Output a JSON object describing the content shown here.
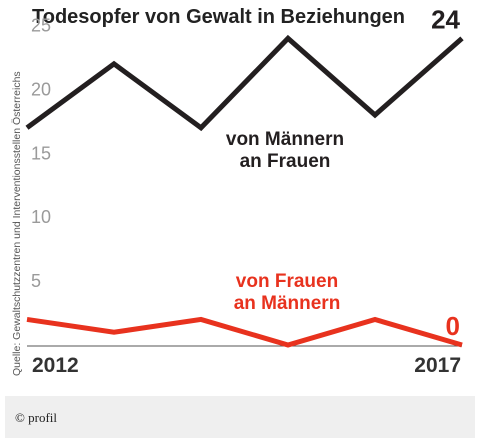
{
  "chart_data": {
    "type": "line",
    "title": "Todesopfer von Gewalt in Beziehungen",
    "source": "Quelle: Gewaltschutzzentren und Interventionsstellen Österreichs",
    "x": [
      2012,
      2013,
      2014,
      2015,
      2016,
      2017
    ],
    "x_tick_labels": [
      "2012",
      "2017"
    ],
    "y_ticks": [
      "5",
      "10",
      "15",
      "20",
      "25"
    ],
    "ylim": [
      0,
      27
    ],
    "grid": false,
    "series": [
      {
        "name": "von Männern an Frauen",
        "label_lines": [
          "von Männern",
          "an Frauen"
        ],
        "values": [
          17,
          22,
          17,
          24,
          18,
          24
        ],
        "end_label": "24",
        "color": "#231f20"
      },
      {
        "name": "von Frauen an Männern",
        "label_lines": [
          "von Frauen",
          "an Männern"
        ],
        "values": [
          2,
          1,
          2,
          0,
          2,
          0
        ],
        "end_label": "0",
        "color": "#e8321e"
      }
    ]
  },
  "credit": "© profil"
}
